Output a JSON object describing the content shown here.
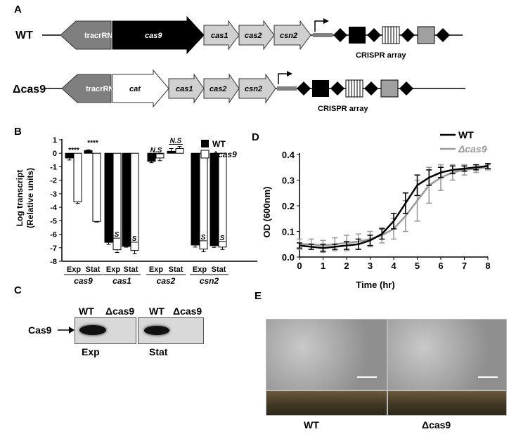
{
  "panels": {
    "a": "A",
    "b": "B",
    "c": "C",
    "d": "D",
    "e": "E"
  },
  "panel_a": {
    "wt_label": "WT",
    "mut_label": "Δcas9",
    "wt_genes": [
      "tracrRNA",
      "cas9",
      "cas1",
      "cas2",
      "csn2"
    ],
    "mut_genes": [
      "tracrRNA",
      "cat",
      "cas1",
      "cas2",
      "csn2"
    ],
    "array_label": "CRISPR array"
  },
  "chart_data": [
    {
      "type": "bar",
      "panel": "B",
      "ylabel": "Log transcript (Relative units)",
      "ylim": [
        -8,
        1
      ],
      "yticks": [
        "1",
        "0",
        "-1",
        "-2",
        "-3",
        "-4",
        "-5",
        "-6",
        "-7",
        "-8"
      ],
      "groups": [
        "cas9",
        "cas1",
        "cas2",
        "csn2"
      ],
      "categories": [
        "Exp",
        "Stat",
        "Exp",
        "Stat",
        "Exp",
        "Stat",
        "Exp",
        "Stat"
      ],
      "series": [
        {
          "name": "WT",
          "color": "#000000",
          "values": [
            -0.35,
            0.2,
            -6.6,
            -6.9,
            -0.6,
            0.15,
            -6.8,
            -6.85
          ],
          "errors": [
            0.15,
            0.06,
            0.15,
            0.06,
            0.1,
            0.2,
            0.15,
            0.12
          ]
        },
        {
          "name": "Δcas9",
          "color": "#ffffff",
          "values": [
            -3.6,
            -5.05,
            -7.15,
            -7.2,
            -0.35,
            0.35,
            -7.1,
            -6.95
          ],
          "errors": [
            0.12,
            0.05,
            0.2,
            0.25,
            0.2,
            0.15,
            0.2,
            0.18
          ]
        }
      ],
      "annotations": [
        "****",
        "****",
        "N.S",
        "N.S",
        "N.S",
        "N.S",
        "N.S",
        "N.S"
      ],
      "legend": "top-right"
    },
    {
      "type": "line",
      "panel": "D",
      "xlabel": "Time (hr)",
      "ylabel": "OD (600nm)",
      "xlim": [
        0,
        8
      ],
      "ylim": [
        0,
        0.4
      ],
      "xticks": [
        "0",
        "1",
        "2",
        "3",
        "4",
        "5",
        "6",
        "7",
        "8"
      ],
      "yticks": [
        "0.0",
        "0.1",
        "0.2",
        "0.3",
        "0.4"
      ],
      "x": [
        0,
        0.5,
        1,
        1.5,
        2,
        2.5,
        3,
        3.5,
        4,
        4.5,
        5,
        5.5,
        6,
        6.5,
        7,
        7.5,
        8
      ],
      "series": [
        {
          "name": "WT",
          "color": "#000000",
          "values": [
            0.045,
            0.04,
            0.035,
            0.04,
            0.045,
            0.05,
            0.065,
            0.09,
            0.14,
            0.21,
            0.28,
            0.31,
            0.33,
            0.34,
            0.345,
            0.35,
            0.355
          ],
          "errors": [
            0.01,
            0.01,
            0.015,
            0.01,
            0.015,
            0.02,
            0.02,
            0.02,
            0.03,
            0.04,
            0.04,
            0.03,
            0.02,
            0.015,
            0.01,
            0.01,
            0.01
          ]
        },
        {
          "name": "Δcas9",
          "color": "#999999",
          "values": [
            0.05,
            0.05,
            0.045,
            0.05,
            0.055,
            0.06,
            0.07,
            0.085,
            0.11,
            0.16,
            0.22,
            0.28,
            0.31,
            0.33,
            0.34,
            0.345,
            0.35
          ],
          "errors": [
            0.02,
            0.02,
            0.02,
            0.025,
            0.03,
            0.03,
            0.03,
            0.03,
            0.04,
            0.06,
            0.08,
            0.07,
            0.05,
            0.03,
            0.02,
            0.015,
            0.01
          ]
        }
      ],
      "legend": "top-right"
    }
  ],
  "panel_c": {
    "row_label": "Cas9",
    "col_labels": [
      "WT",
      "Δcas9",
      "WT",
      "Δcas9"
    ],
    "conditions": [
      "Exp",
      "Stat"
    ]
  },
  "panel_e": {
    "labels": [
      "WT",
      "Δcas9"
    ]
  }
}
